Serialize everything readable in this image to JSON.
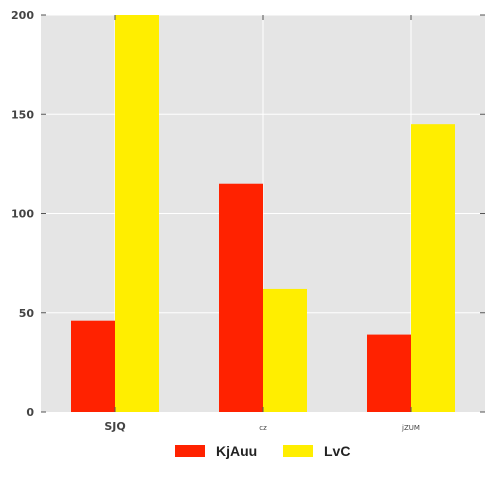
{
  "chart_data": {
    "type": "bar",
    "categories": [
      "SJQ",
      "cz",
      "jZUM"
    ],
    "series": [
      {
        "name": "KjAuu",
        "values": [
          46,
          115,
          39
        ],
        "color": "#ff2200"
      },
      {
        "name": "LvC",
        "values": [
          200,
          62,
          145
        ],
        "color": "#ffee00"
      }
    ],
    "ylim": [
      0,
      200
    ],
    "yticks": [
      0,
      50,
      100,
      150,
      200
    ],
    "grid": true,
    "background": "#e5e5e5",
    "gridColor": "#ffffff",
    "legend": "bottom-center"
  }
}
